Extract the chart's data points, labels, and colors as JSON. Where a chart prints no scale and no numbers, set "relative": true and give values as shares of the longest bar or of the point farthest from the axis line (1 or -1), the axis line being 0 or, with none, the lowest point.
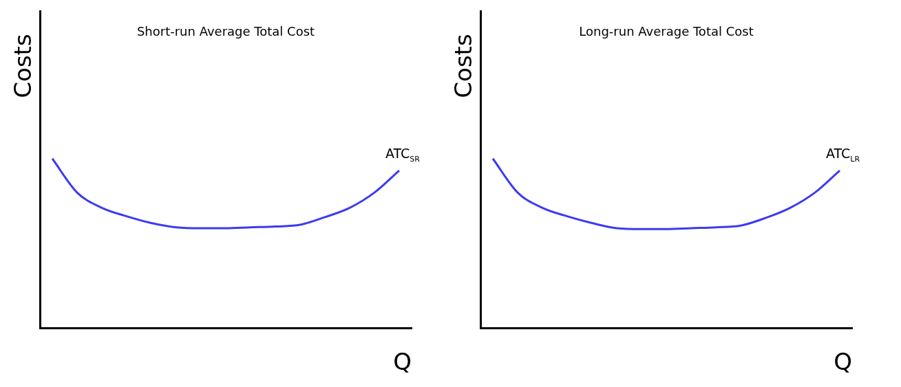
{
  "chart_data": [
    {
      "type": "line",
      "title": "Short-run Average Total Cost",
      "xlabel": "Q",
      "ylabel": "Costs",
      "relative": true,
      "categories": [
        null,
        null,
        null,
        null,
        null,
        null,
        null,
        null,
        null,
        null,
        null,
        null,
        null,
        null,
        null
      ],
      "series": [
        {
          "color": "#3b3bf2",
          "values": [
            1.0,
            0.8,
            0.71,
            0.66,
            0.62,
            0.595,
            0.59,
            0.59,
            0.595,
            0.6,
            0.61,
            0.655,
            0.71,
            0.8,
            0.93
          ]
        }
      ],
      "annotations": [
        "ATC$_{SR}$"
      ],
      "grid": false,
      "legend": false,
      "marker": "none"
    },
    {
      "type": "line",
      "title": "Long-run Average Total Cost",
      "xlabel": "Q",
      "ylabel": "Costs",
      "relative": true,
      "categories": [
        null,
        null,
        null,
        null,
        null,
        null,
        null,
        null,
        null,
        null,
        null,
        null,
        null,
        null,
        null
      ],
      "series": [
        {
          "color": "#3b3bf2",
          "values": [
            1.0,
            0.8,
            0.71,
            0.66,
            0.62,
            0.59,
            0.585,
            0.585,
            0.59,
            0.595,
            0.605,
            0.65,
            0.71,
            0.8,
            0.93
          ]
        }
      ],
      "annotations": [
        "ATC$_{LR}$"
      ],
      "grid": false,
      "legend": false,
      "marker": "none"
    }
  ]
}
